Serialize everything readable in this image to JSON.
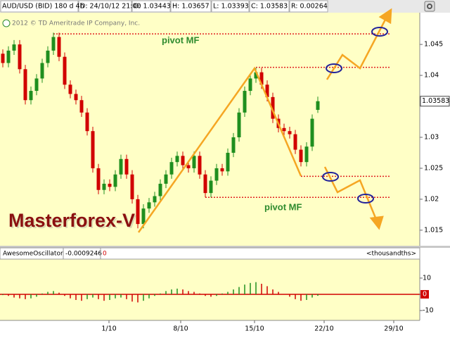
{
  "header": {
    "symbol": "AUD/USD (BID) 180 d 4h",
    "date": "D: 24/10/12 21:00",
    "open": "O: 1.03443",
    "high": "H: 1.03657",
    "low": "L: 1.03393",
    "close": "C: 1.03583",
    "range": "R: 0.00264"
  },
  "chart_data": [
    {
      "type": "candlestick",
      "copyright": "2012 © TD Ameritrade IP Company, Inc.",
      "watermark": "Masterforex-V",
      "annotations": [
        "pivot MF",
        "pivot MF"
      ],
      "up_color": "#1f8f1f",
      "down_color": "#d10000",
      "open": [
        1.0435,
        1.042,
        1.044,
        1.045,
        1.041,
        1.036,
        1.0375,
        1.0395,
        1.042,
        1.044,
        1.0462,
        1.043,
        1.0385,
        1.037,
        1.036,
        1.034,
        1.031,
        1.025,
        1.0215,
        1.0225,
        1.022,
        1.024,
        1.0265,
        1.024,
        1.02,
        1.016,
        1.0185,
        1.0195,
        1.0205,
        1.0225,
        1.024,
        1.026,
        1.027,
        1.0255,
        1.025,
        1.027,
        1.024,
        1.021,
        1.023,
        1.025,
        1.0245,
        1.0275,
        1.03,
        1.034,
        1.0375,
        1.0395,
        1.0405,
        1.0385,
        1.0365,
        1.033,
        1.0315,
        1.031,
        1.0305,
        1.028,
        1.026,
        1.0285,
        1.03443
      ],
      "high": [
        1.0442,
        1.0447,
        1.0457,
        1.0457,
        1.0417,
        1.0382,
        1.0402,
        1.0427,
        1.0447,
        1.0469,
        1.0469,
        1.0437,
        1.0392,
        1.0377,
        1.0367,
        1.0347,
        1.0317,
        1.0257,
        1.0232,
        1.0232,
        1.0247,
        1.0272,
        1.0272,
        1.0247,
        1.0207,
        1.0192,
        1.0202,
        1.0212,
        1.0232,
        1.0247,
        1.0267,
        1.0277,
        1.0277,
        1.0262,
        1.0277,
        1.0277,
        1.0247,
        1.0237,
        1.0257,
        1.0257,
        1.0282,
        1.0307,
        1.0347,
        1.0382,
        1.0402,
        1.0412,
        1.0412,
        1.0392,
        1.0372,
        1.0337,
        1.0322,
        1.0317,
        1.0312,
        1.0287,
        1.0292,
        1.0337,
        1.03657
      ],
      "low": [
        1.0413,
        1.0413,
        1.0433,
        1.0403,
        1.0353,
        1.0353,
        1.0368,
        1.0388,
        1.0413,
        1.0433,
        1.0423,
        1.0378,
        1.0363,
        1.0353,
        1.0333,
        1.0303,
        1.0243,
        1.0208,
        1.0208,
        1.0213,
        1.0213,
        1.0233,
        1.0233,
        1.0193,
        1.0153,
        1.0153,
        1.0178,
        1.0188,
        1.0198,
        1.0218,
        1.0233,
        1.0253,
        1.0248,
        1.0243,
        1.0243,
        1.0233,
        1.0203,
        1.0203,
        1.0223,
        1.0238,
        1.0238,
        1.0268,
        1.0293,
        1.0333,
        1.0368,
        1.0388,
        1.0378,
        1.0358,
        1.0323,
        1.0308,
        1.0303,
        1.0298,
        1.0273,
        1.0253,
        1.0253,
        1.0278,
        1.03393
      ],
      "close": [
        1.042,
        1.044,
        1.045,
        1.041,
        1.036,
        1.0375,
        1.0395,
        1.042,
        1.044,
        1.0462,
        1.043,
        1.0385,
        1.037,
        1.036,
        1.034,
        1.031,
        1.025,
        1.0215,
        1.0225,
        1.022,
        1.024,
        1.0265,
        1.024,
        1.02,
        1.016,
        1.0185,
        1.0195,
        1.0205,
        1.0225,
        1.024,
        1.026,
        1.027,
        1.0255,
        1.025,
        1.027,
        1.024,
        1.021,
        1.023,
        1.025,
        1.0245,
        1.0275,
        1.03,
        1.034,
        1.0375,
        1.0395,
        1.0405,
        1.0385,
        1.0365,
        1.033,
        1.0315,
        1.031,
        1.0305,
        1.028,
        1.026,
        1.0285,
        1.033,
        1.03583
      ],
      "pivot_levels": [
        1.0467,
        1.0413,
        1.0237,
        1.0203
      ],
      "pivot_starts": [
        9,
        45,
        53,
        36
      ],
      "pivot_color": "#e02020",
      "xlim": [
        -0.5,
        74.125
      ],
      "ylim": [
        1.0126,
        1.0499
      ],
      "yticks": [
        1.045,
        1.04,
        1.03,
        1.025,
        1.02,
        1.015
      ]
    },
    {
      "type": "histogram",
      "title": "AwesomeOscillator",
      "readout": "-0.0009246",
      "level": 0,
      "units": "<thousandths>",
      "up_color": "#1f8f1f",
      "down_color": "#d10000",
      "values": [
        -0.5,
        -1,
        -2,
        -2.5,
        -3,
        -2.5,
        -1.5,
        0.5,
        1.5,
        2,
        1,
        -1,
        -2.5,
        -3.5,
        -4,
        -3,
        -2,
        -3,
        -4,
        -3.5,
        -2.5,
        -2,
        -3,
        -4.5,
        -5,
        -4,
        -2.5,
        -1,
        0.5,
        2,
        3,
        3.5,
        3,
        2,
        1.5,
        0.5,
        -1,
        -1.5,
        -1,
        0.5,
        1.5,
        3,
        4.5,
        6,
        7,
        7.5,
        6.5,
        5,
        3,
        1.5,
        0,
        -1.5,
        -3,
        -4,
        -3.5,
        -2,
        -0.9246
      ],
      "xlim": [
        -0.5,
        74.125
      ],
      "ylim": [
        -16.1,
        21.7
      ],
      "yticks": [
        10,
        0,
        -10
      ],
      "xticks": [
        {
          "value": 18.875,
          "label": "1/10"
        },
        {
          "value": 31.625,
          "label": "8/10"
        },
        {
          "value": 44.75,
          "label": "15/10"
        },
        {
          "value": 57.125,
          "label": "22/10"
        },
        {
          "value": 69.5,
          "label": "29/10"
        }
      ]
    }
  ]
}
